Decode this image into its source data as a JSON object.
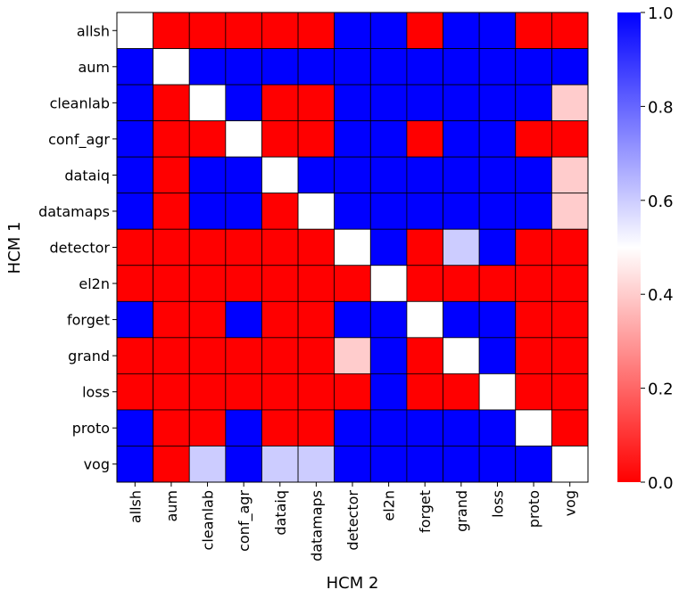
{
  "chart_data": {
    "type": "heatmap",
    "title": "",
    "xlabel": "HCM 2",
    "ylabel": "HCM 1",
    "rows": [
      "allsh",
      "aum",
      "cleanlab",
      "conf_agr",
      "dataiq",
      "datamaps",
      "detector",
      "el2n",
      "forget",
      "grand",
      "loss",
      "proto",
      "vog"
    ],
    "cols": [
      "allsh",
      "aum",
      "cleanlab",
      "conf_agr",
      "dataiq",
      "datamaps",
      "detector",
      "el2n",
      "forget",
      "grand",
      "loss",
      "proto",
      "vog"
    ],
    "values": [
      [
        0.5,
        0,
        0,
        0,
        0,
        0,
        1,
        1,
        0,
        1,
        1,
        0,
        0
      ],
      [
        1,
        0.5,
        1,
        1,
        1,
        1,
        1,
        1,
        1,
        1,
        1,
        1,
        1
      ],
      [
        1,
        0,
        0.5,
        1,
        0,
        0,
        1,
        1,
        1,
        1,
        1,
        1,
        0.4
      ],
      [
        1,
        0,
        0,
        0.5,
        0,
        0,
        1,
        1,
        0,
        1,
        1,
        0,
        0
      ],
      [
        1,
        0,
        1,
        1,
        0.5,
        1,
        1,
        1,
        1,
        1,
        1,
        1,
        0.4
      ],
      [
        1,
        0,
        1,
        1,
        0,
        0.5,
        1,
        1,
        1,
        1,
        1,
        1,
        0.4
      ],
      [
        0,
        0,
        0,
        0,
        0,
        0,
        0.5,
        1,
        0,
        0.6,
        1,
        0,
        0
      ],
      [
        0,
        0,
        0,
        0,
        0,
        0,
        0,
        0.5,
        0,
        0,
        0,
        0,
        0
      ],
      [
        1,
        0,
        0,
        1,
        0,
        0,
        1,
        1,
        0.5,
        1,
        1,
        0,
        0
      ],
      [
        0,
        0,
        0,
        0,
        0,
        0,
        0.4,
        1,
        0,
        0.5,
        1,
        0,
        0
      ],
      [
        0,
        0,
        0,
        0,
        0,
        0,
        0,
        1,
        0,
        0,
        0.5,
        0,
        0
      ],
      [
        1,
        0,
        0,
        1,
        0,
        0,
        1,
        1,
        1,
        1,
        1,
        0.5,
        0
      ],
      [
        1,
        0,
        0.6,
        1,
        0.6,
        0.6,
        1,
        1,
        1,
        1,
        1,
        1,
        0.5
      ]
    ],
    "colorbar": {
      "range": [
        0.0,
        1.0
      ],
      "ticks": [
        0.0,
        0.2,
        0.4,
        0.6,
        0.8,
        1.0
      ],
      "tick_labels": [
        "0.0",
        "0.2",
        "0.4",
        "0.6",
        "0.8",
        "1.0"
      ],
      "low_color": "#ff0000",
      "mid_color": "#ffffff",
      "high_color": "#0000ff"
    }
  }
}
